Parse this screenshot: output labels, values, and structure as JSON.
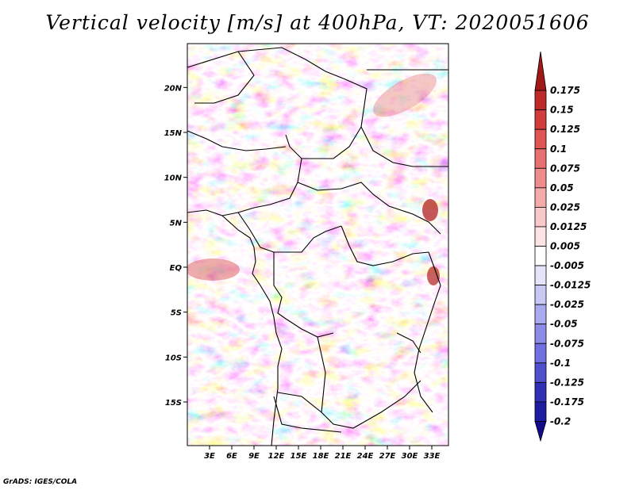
{
  "chart_data": {
    "type": "heatmap",
    "title": "Vertical velocity [m/s] at 400hPa, VT: 2020051606",
    "variable": "Vertical velocity",
    "units": "m/s",
    "level": "400hPa",
    "valid_time": "2020051606",
    "x_range": [
      0,
      35
    ],
    "y_range": [
      -20,
      25
    ],
    "x_ticks": [
      {
        "value": 3,
        "label": "3E"
      },
      {
        "value": 6,
        "label": "6E"
      },
      {
        "value": 9,
        "label": "9E"
      },
      {
        "value": 12,
        "label": "12E"
      },
      {
        "value": 15,
        "label": "15E"
      },
      {
        "value": 18,
        "label": "18E"
      },
      {
        "value": 21,
        "label": "21E"
      },
      {
        "value": 24,
        "label": "24E"
      },
      {
        "value": 27,
        "label": "27E"
      },
      {
        "value": 30,
        "label": "30E"
      },
      {
        "value": 33,
        "label": "33E"
      }
    ],
    "y_ticks": [
      {
        "value": 20,
        "label": "20N"
      },
      {
        "value": 15,
        "label": "15N"
      },
      {
        "value": 10,
        "label": "10N"
      },
      {
        "value": 5,
        "label": "5N"
      },
      {
        "value": 0,
        "label": "EQ"
      },
      {
        "value": -5,
        "label": "5S"
      },
      {
        "value": -10,
        "label": "10S"
      },
      {
        "value": -15,
        "label": "15S"
      }
    ],
    "colorbar": {
      "labels": [
        "0.175",
        "0.15",
        "0.125",
        "0.1",
        "0.075",
        "0.05",
        "0.025",
        "0.0125",
        "0.005",
        "-0.005",
        "-0.0125",
        "-0.025",
        "-0.05",
        "-0.075",
        "-0.1",
        "-0.125",
        "-0.175",
        "-0.2"
      ],
      "colors": [
        "#a01818",
        "#be2a2a",
        "#d23c3c",
        "#e05454",
        "#e87070",
        "#f08c8c",
        "#f5aaaa",
        "#f9c8c8",
        "#fce4e4",
        "#ffffff",
        "#e4e4fb",
        "#c8c8f5",
        "#aaaaf0",
        "#8c8ce8",
        "#7070e0",
        "#5050cc",
        "#3030b4",
        "#1c1ca0",
        "#140a8c"
      ]
    }
  },
  "credit": "GrADS: IGES/COLA"
}
